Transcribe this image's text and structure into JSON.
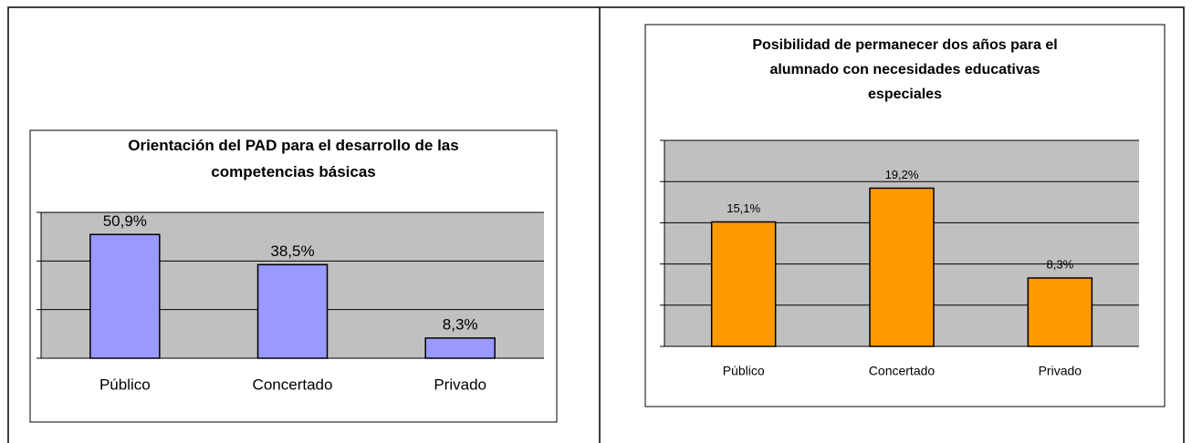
{
  "chart_data": [
    {
      "type": "bar",
      "title": "Orientación del PAD para el desarrollo de las competencias básicas",
      "categories": [
        "Público",
        "Concertado",
        "Privado"
      ],
      "values": [
        50.9,
        38.5,
        8.3
      ],
      "value_labels": [
        "50,9%",
        "38,5%",
        "8,3%"
      ],
      "color": "#9999ff",
      "ylim": [
        0,
        60
      ],
      "yticks": [
        0,
        20,
        40,
        60
      ],
      "grid": true
    },
    {
      "type": "bar",
      "title": "Posibilidad de permanecer dos años para el alumnado con necesidades educativas especiales",
      "categories": [
        "Público",
        "Concertado",
        "Privado"
      ],
      "values": [
        15.1,
        19.2,
        8.3
      ],
      "value_labels": [
        "15,1%",
        "19,2%",
        "8,3%"
      ],
      "color": "#ff9900",
      "ylim": [
        0,
        25
      ],
      "yticks": [
        0,
        5,
        10,
        15,
        20,
        25
      ],
      "grid": true
    }
  ]
}
